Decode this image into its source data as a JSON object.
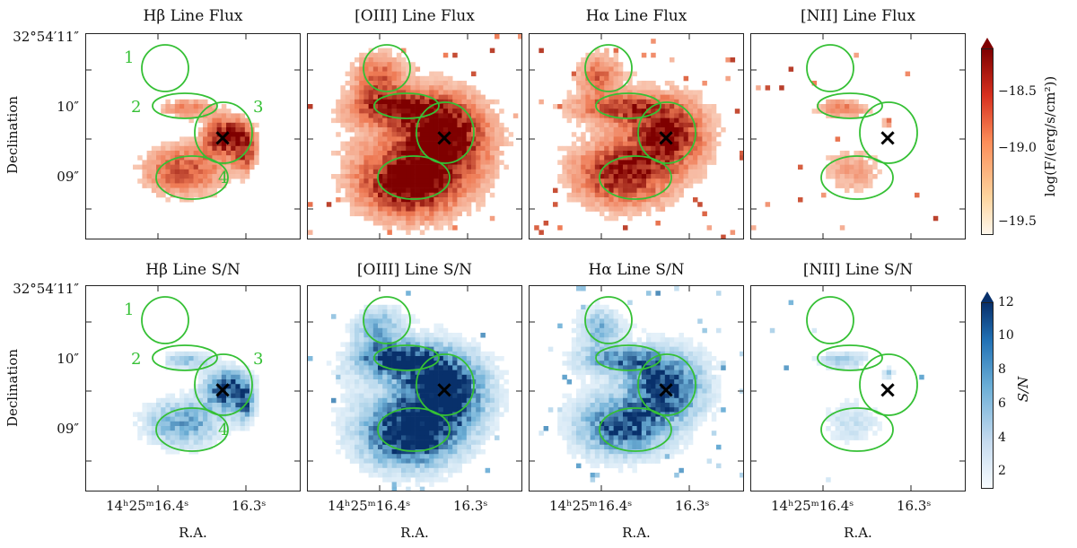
{
  "rows": [
    {
      "row_name": "flux",
      "panels": [
        {
          "title": "Hβ Line Flux"
        },
        {
          "title": "[OIII] Line Flux"
        },
        {
          "title": "Hα Line Flux"
        },
        {
          "title": "[NII] Line Flux"
        }
      ],
      "colorbar": {
        "label": "log(F/(erg/s/cm²))",
        "ticks": [
          "−18.5",
          "−19.0",
          "−19.5"
        ],
        "colors": {
          "low": "#fff7ec",
          "mid": "#ef7b55",
          "high": "#7f0000"
        }
      }
    },
    {
      "row_name": "sn",
      "panels": [
        {
          "title": "Hβ Line S/N"
        },
        {
          "title": "[OIII] Line S/N"
        },
        {
          "title": "Hα Line S/N"
        },
        {
          "title": "[NII] Line S/N"
        }
      ],
      "colorbar": {
        "label": "S/N",
        "ticks": [
          "12",
          "10",
          "8",
          "6",
          "4",
          "2"
        ],
        "colors": {
          "low": "#f7fbff",
          "mid": "#6baed6",
          "high": "#08306b"
        }
      }
    }
  ],
  "axes": {
    "ylabel": "Declination",
    "xlabel": "R.A.",
    "yticks": [
      "32°54′11″",
      "10″",
      "09″"
    ],
    "xticks": [
      "14ʰ25ᵐ16.4ˢ",
      "16.3ˢ"
    ]
  },
  "regions": {
    "labels": [
      "1",
      "2",
      "3",
      "4"
    ],
    "color": "#35c035"
  },
  "marker": {
    "symbol": "×"
  }
}
